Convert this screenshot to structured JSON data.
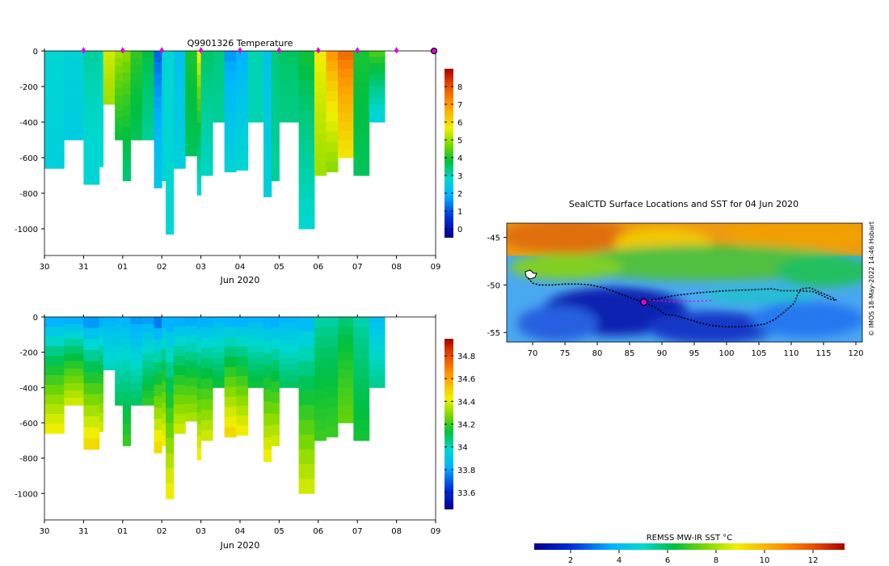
{
  "watermark": "© IMOS 18-May-2022 14:46 Hobart",
  "chart_data": [
    {
      "id": "temperature",
      "type": "heatmap",
      "title": "Q9901326  Temperature",
      "xlabel": "Jun 2020",
      "ylabel": "",
      "x_tick_labels": [
        "30",
        "31",
        "01",
        "02",
        "03",
        "04",
        "05",
        "06",
        "07",
        "08",
        "09"
      ],
      "y_ticks": [
        0,
        -200,
        -400,
        -600,
        -800,
        -1000
      ],
      "ylim": [
        -1150,
        0
      ],
      "colorbar": {
        "min": -0.5,
        "max": 9,
        "ticks": [
          0,
          1,
          2,
          3,
          4,
          5,
          6,
          7,
          8
        ]
      },
      "profile_markers": [
        "31",
        "01",
        "02",
        "03",
        "04",
        "05",
        "06",
        "07",
        "08"
      ],
      "profiles": [
        {
          "day": 0.0,
          "depth": 660,
          "surface": 2.8,
          "deep": 2.6
        },
        {
          "day": 0.5,
          "depth": 500,
          "surface": 2.7,
          "deep": 2.5
        },
        {
          "day": 1.0,
          "depth": 750,
          "surface": 3.2,
          "deep": 2.7
        },
        {
          "day": 1.4,
          "depth": 650,
          "surface": 3.0,
          "deep": 2.8
        },
        {
          "day": 1.5,
          "depth": 300,
          "surface": 5.5,
          "deep": 5.0
        },
        {
          "day": 1.8,
          "depth": 500,
          "surface": 5.2,
          "deep": 3.8
        },
        {
          "day": 2.0,
          "depth": 730,
          "surface": 5.0,
          "deep": 3.4
        },
        {
          "day": 2.2,
          "depth": 500,
          "surface": 4.2,
          "deep": 3.6
        },
        {
          "day": 2.5,
          "depth": 500,
          "surface": 3.8,
          "deep": 3.2
        },
        {
          "day": 2.8,
          "depth": 770,
          "surface": 1.0,
          "deep": 2.4
        },
        {
          "day": 3.0,
          "depth": 730,
          "surface": 2.6,
          "deep": 2.7
        },
        {
          "day": 3.1,
          "depth": 1030,
          "surface": 2.8,
          "deep": 2.8
        },
        {
          "day": 3.3,
          "depth": 660,
          "surface": 2.2,
          "deep": 2.6
        },
        {
          "day": 3.6,
          "depth": 590,
          "surface": 4.0,
          "deep": 3.6
        },
        {
          "day": 3.9,
          "depth": 810,
          "surface": 6.0,
          "deep": 2.7
        },
        {
          "day": 4.0,
          "depth": 700,
          "surface": 3.6,
          "deep": 2.9
        },
        {
          "day": 4.3,
          "depth": 400,
          "surface": 3.4,
          "deep": 3.2
        },
        {
          "day": 4.6,
          "depth": 680,
          "surface": 1.5,
          "deep": 2.7
        },
        {
          "day": 4.9,
          "depth": 670,
          "surface": 1.8,
          "deep": 2.8
        },
        {
          "day": 5.2,
          "depth": 400,
          "surface": 3.0,
          "deep": 3.0
        },
        {
          "day": 5.6,
          "depth": 820,
          "surface": 2.2,
          "deep": 2.6
        },
        {
          "day": 5.8,
          "depth": 730,
          "surface": 3.4,
          "deep": 3.2
        },
        {
          "day": 6.0,
          "depth": 400,
          "surface": 3.6,
          "deep": 3.3
        },
        {
          "day": 6.5,
          "depth": 1000,
          "surface": 4.0,
          "deep": 2.8
        },
        {
          "day": 6.9,
          "depth": 700,
          "surface": 5.8,
          "deep": 5.0
        },
        {
          "day": 7.2,
          "depth": 680,
          "surface": 7.2,
          "deep": 4.8
        },
        {
          "day": 7.5,
          "depth": 600,
          "surface": 7.8,
          "deep": 5.8
        },
        {
          "day": 7.9,
          "depth": 700,
          "surface": 4.0,
          "deep": 3.6
        },
        {
          "day": 8.3,
          "depth": 400,
          "surface": 4.5,
          "deep": 2.6
        }
      ]
    },
    {
      "id": "salinity",
      "type": "heatmap",
      "title": "",
      "xlabel": "Jun 2020",
      "ylabel": "",
      "x_tick_labels": [
        "30",
        "31",
        "01",
        "02",
        "03",
        "04",
        "05",
        "06",
        "07",
        "08",
        "09"
      ],
      "y_ticks": [
        0,
        -200,
        -400,
        -600,
        -800,
        -1000
      ],
      "ylim": [
        -1150,
        0
      ],
      "colorbar": {
        "min": 33.45,
        "max": 34.95,
        "ticks": [
          33.6,
          33.8,
          34,
          34.2,
          34.4,
          34.6,
          34.8
        ],
        "tick_labels": [
          "33.6",
          "33.8",
          "34",
          "34.2",
          "34.4",
          "34.6",
          "34.8"
        ]
      },
      "profiles": [
        {
          "day": 0.0,
          "depth": 660,
          "surface": 33.75,
          "deep": 34.45
        },
        {
          "day": 0.5,
          "depth": 500,
          "surface": 33.75,
          "deep": 34.4
        },
        {
          "day": 1.0,
          "depth": 750,
          "surface": 33.7,
          "deep": 34.5
        },
        {
          "day": 1.4,
          "depth": 650,
          "surface": 33.75,
          "deep": 34.4
        },
        {
          "day": 1.5,
          "depth": 300,
          "surface": 33.8,
          "deep": 34.0
        },
        {
          "day": 1.8,
          "depth": 500,
          "surface": 33.8,
          "deep": 34.1
        },
        {
          "day": 2.0,
          "depth": 730,
          "surface": 33.8,
          "deep": 34.2
        },
        {
          "day": 2.2,
          "depth": 500,
          "surface": 33.75,
          "deep": 34.1
        },
        {
          "day": 2.5,
          "depth": 500,
          "surface": 33.75,
          "deep": 34.2
        },
        {
          "day": 2.8,
          "depth": 770,
          "surface": 33.65,
          "deep": 34.5
        },
        {
          "day": 3.0,
          "depth": 730,
          "surface": 33.75,
          "deep": 34.45
        },
        {
          "day": 3.1,
          "depth": 1030,
          "surface": 33.75,
          "deep": 34.45
        },
        {
          "day": 3.3,
          "depth": 660,
          "surface": 33.75,
          "deep": 34.4
        },
        {
          "day": 3.6,
          "depth": 590,
          "surface": 33.75,
          "deep": 34.35
        },
        {
          "day": 3.9,
          "depth": 810,
          "surface": 33.75,
          "deep": 34.45
        },
        {
          "day": 4.0,
          "depth": 700,
          "surface": 33.75,
          "deep": 34.4
        },
        {
          "day": 4.3,
          "depth": 400,
          "surface": 33.8,
          "deep": 34.15
        },
        {
          "day": 4.6,
          "depth": 680,
          "surface": 33.75,
          "deep": 34.5
        },
        {
          "day": 4.9,
          "depth": 670,
          "surface": 33.75,
          "deep": 34.45
        },
        {
          "day": 5.2,
          "depth": 400,
          "surface": 33.8,
          "deep": 34.15
        },
        {
          "day": 5.6,
          "depth": 820,
          "surface": 33.75,
          "deep": 34.45
        },
        {
          "day": 5.8,
          "depth": 730,
          "surface": 33.75,
          "deep": 34.4
        },
        {
          "day": 6.0,
          "depth": 400,
          "surface": 33.8,
          "deep": 34.1
        },
        {
          "day": 6.5,
          "depth": 1000,
          "surface": 33.8,
          "deep": 34.4
        },
        {
          "day": 6.9,
          "depth": 700,
          "surface": 34.0,
          "deep": 34.2
        },
        {
          "day": 7.2,
          "depth": 680,
          "surface": 34.0,
          "deep": 34.2
        },
        {
          "day": 7.5,
          "depth": 600,
          "surface": 34.05,
          "deep": 34.25
        },
        {
          "day": 7.9,
          "depth": 700,
          "surface": 34.0,
          "deep": 34.15
        },
        {
          "day": 8.3,
          "depth": 400,
          "surface": 33.85,
          "deep": 34.05
        }
      ]
    },
    {
      "id": "sst_map",
      "type": "heatmap",
      "title": "SealCTD Surface Locations and SST for 04 Jun 2020",
      "x_tick_labels": [
        "70",
        "75",
        "80",
        "85",
        "90",
        "95",
        "100",
        "105",
        "110",
        "115",
        "120"
      ],
      "x_ticks": [
        70,
        75,
        80,
        85,
        90,
        95,
        100,
        105,
        110,
        115,
        120
      ],
      "y_tick_labels": [
        "-45",
        "-50",
        "-55"
      ],
      "y_ticks": [
        -45,
        -50,
        -55
      ],
      "xlim": [
        66,
        121
      ],
      "ylim": [
        -56,
        -43.5
      ],
      "current_position": [
        87.2,
        -51.8
      ],
      "track": [
        [
          69.3,
          -49.3
        ],
        [
          70.0,
          -49.8
        ],
        [
          71.0,
          -50.0
        ],
        [
          73.0,
          -50.0
        ],
        [
          75.0,
          -49.9
        ],
        [
          77.0,
          -49.9
        ],
        [
          79.0,
          -50.0
        ],
        [
          81.0,
          -50.3
        ],
        [
          83.0,
          -50.8
        ],
        [
          85.0,
          -51.3
        ],
        [
          86.5,
          -51.7
        ],
        [
          87.2,
          -51.8
        ],
        [
          88.5,
          -52.2
        ],
        [
          89.5,
          -52.6
        ],
        [
          90.5,
          -53.1
        ],
        [
          92.0,
          -53.2
        ],
        [
          94.0,
          -53.6
        ],
        [
          96.0,
          -54.0
        ],
        [
          98.0,
          -54.3
        ],
        [
          100.0,
          -54.4
        ],
        [
          102.0,
          -54.4
        ],
        [
          104.0,
          -54.3
        ],
        [
          106.0,
          -54.1
        ],
        [
          107.5,
          -53.6
        ],
        [
          109.0,
          -52.8
        ],
        [
          110.5,
          -51.9
        ],
        [
          111.0,
          -51.0
        ],
        [
          111.5,
          -50.4
        ],
        [
          113.0,
          -50.3
        ],
        [
          114.5,
          -50.8
        ],
        [
          116.0,
          -51.2
        ],
        [
          117.0,
          -51.6
        ],
        [
          116.0,
          -51.5
        ],
        [
          113.5,
          -50.7
        ],
        [
          111.0,
          -50.6
        ],
        [
          108.5,
          -50.6
        ],
        [
          107.0,
          -50.4
        ],
        [
          104.0,
          -50.5
        ],
        [
          100.0,
          -50.6
        ],
        [
          96.0,
          -50.8
        ],
        [
          92.0,
          -51.1
        ],
        [
          89.0,
          -51.5
        ],
        [
          87.2,
          -51.8
        ]
      ],
      "magenta_track": [
        [
          88.0,
          -51.6
        ],
        [
          90.0,
          -51.7
        ],
        [
          92.0,
          -51.8
        ],
        [
          94.0,
          -51.7
        ],
        [
          96.0,
          -51.7
        ],
        [
          98.0,
          -51.6
        ]
      ]
    },
    {
      "id": "sst_colorbar",
      "type": "heatmap",
      "title": "REMSS MW-IR SST °C",
      "min": 0.5,
      "max": 13.3,
      "ticks": [
        2,
        4,
        6,
        8,
        10,
        12
      ],
      "tick_labels": [
        "2",
        "4",
        "6",
        "8",
        "10",
        "12"
      ]
    }
  ]
}
